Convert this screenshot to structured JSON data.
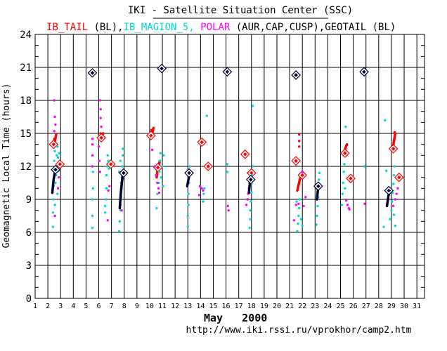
{
  "header": {
    "title": "IKI - Satellite Situation Center (SSC)",
    "legend": [
      {
        "text": "IB_TAIL",
        "color": "#ff0000"
      },
      {
        "text": " (BL),",
        "color": "#000000"
      },
      {
        "text": "IB_MAGION_5,",
        "color": "#00d8d8"
      },
      {
        "text": " POLAR",
        "color": "#ff00ff"
      },
      {
        "text": " (AUR,CAP,CUSP),",
        "color": "#000000"
      },
      {
        "text": "GEOTAIL",
        "color": "#000000"
      },
      {
        "text": " (BL)",
        "color": "#000000"
      }
    ]
  },
  "footer": {
    "month_label": "May   2000",
    "url": "http://www.iki.rssi.ru/vprokhor/camp2.htm"
  },
  "colors": {
    "ib_tail": "#ff0000",
    "magion5": "#00d8d8",
    "polar": "#ff00ff",
    "geotail": "#000033",
    "grid": "#000000",
    "background": "#ffffff"
  },
  "chart_data": {
    "type": "scatter",
    "xlabel": "",
    "ylabel": "Geomagnetic Local Time (hours)",
    "xlim": [
      1,
      31.6
    ],
    "ylim": [
      0,
      24
    ],
    "x_ticks": [
      1,
      2,
      3,
      4,
      5,
      6,
      7,
      8,
      9,
      10,
      11,
      12,
      13,
      14,
      15,
      16,
      17,
      18,
      19,
      20,
      21,
      22,
      23,
      24,
      25,
      26,
      27,
      28,
      29,
      30,
      31
    ],
    "y_ticks": [
      0,
      3,
      6,
      9,
      12,
      15,
      18,
      21,
      24
    ],
    "grid": true,
    "series": [
      {
        "name": "IB_TAIL",
        "color": "#ff0000",
        "segments": [
          {
            "x": [
              2.45,
              2.55,
              2.65
            ],
            "y": [
              13.8,
              14.2,
              14.9
            ]
          },
          {
            "x": [
              6.1,
              6.25,
              6.35
            ],
            "y": [
              14.6,
              14.8,
              15.0
            ]
          },
          {
            "x": [
              10.1,
              10.2,
              10.3
            ],
            "y": [
              14.8,
              15.0,
              15.5
            ]
          },
          {
            "x": [
              10.55,
              10.6,
              10.7,
              10.8
            ],
            "y": [
              11.0,
              11.5,
              12.0,
              12.5
            ]
          },
          {
            "x": [
              17.85,
              17.95,
              18.05
            ],
            "y": [
              10.5,
              11.0,
              11.6
            ]
          },
          {
            "x": [
              21.6,
              21.7,
              21.8,
              21.9
            ],
            "y": [
              9.8,
              10.3,
              10.8,
              11.2
            ]
          },
          {
            "x": [
              25.3,
              25.4,
              25.5
            ],
            "y": [
              13.4,
              13.7,
              14.0
            ]
          },
          {
            "x": [
              29.1,
              29.2,
              29.3
            ],
            "y": [
              13.6,
              14.3,
              15.0
            ]
          }
        ],
        "diamonds": [
          {
            "x": 2.45,
            "y": 14.0
          },
          {
            "x": 2.95,
            "y": 12.2
          },
          {
            "x": 6.2,
            "y": 14.6
          },
          {
            "x": 6.95,
            "y": 12.2
          },
          {
            "x": 10.1,
            "y": 14.8
          },
          {
            "x": 10.65,
            "y": 11.9
          },
          {
            "x": 14.1,
            "y": 14.2
          },
          {
            "x": 14.6,
            "y": 12.0
          },
          {
            "x": 17.5,
            "y": 13.1
          },
          {
            "x": 18.0,
            "y": 11.4
          },
          {
            "x": 21.5,
            "y": 12.5
          },
          {
            "x": 22.0,
            "y": 11.2
          },
          {
            "x": 25.35,
            "y": 13.2
          },
          {
            "x": 25.8,
            "y": 10.9
          },
          {
            "x": 29.15,
            "y": 13.6
          },
          {
            "x": 29.6,
            "y": 11.0
          }
        ],
        "points": [
          {
            "x": 2.5,
            "y": 14.5
          },
          {
            "x": 6.15,
            "y": 15.0
          },
          {
            "x": 10.15,
            "y": 15.3
          },
          {
            "x": 21.75,
            "y": 14.9
          },
          {
            "x": 21.75,
            "y": 14.3
          },
          {
            "x": 21.75,
            "y": 13.8
          },
          {
            "x": 29.25,
            "y": 15.1
          },
          {
            "x": 18.0,
            "y": 11.6
          }
        ]
      },
      {
        "name": "IB_MAGION_5",
        "color": "#00d8d8",
        "points": [
          {
            "x": 2.4,
            "y": 6.5
          },
          {
            "x": 2.4,
            "y": 7.8
          },
          {
            "x": 2.45,
            "y": 9.0
          },
          {
            "x": 2.45,
            "y": 10.2
          },
          {
            "x": 2.5,
            "y": 11.0
          },
          {
            "x": 2.5,
            "y": 12.5
          },
          {
            "x": 2.55,
            "y": 13.4
          },
          {
            "x": 2.6,
            "y": 12.0
          },
          {
            "x": 2.65,
            "y": 11.2
          },
          {
            "x": 2.7,
            "y": 13.0
          },
          {
            "x": 2.75,
            "y": 13.8
          },
          {
            "x": 2.8,
            "y": 12.8
          },
          {
            "x": 2.85,
            "y": 11.6
          },
          {
            "x": 2.9,
            "y": 13.2
          },
          {
            "x": 2.6,
            "y": 10.5
          },
          {
            "x": 2.75,
            "y": 9.5
          },
          {
            "x": 2.55,
            "y": 8.5
          },
          {
            "x": 5.5,
            "y": 6.4
          },
          {
            "x": 5.5,
            "y": 7.5
          },
          {
            "x": 5.5,
            "y": 9.0
          },
          {
            "x": 5.55,
            "y": 10.0
          },
          {
            "x": 5.55,
            "y": 11.5
          },
          {
            "x": 6.5,
            "y": 7.8
          },
          {
            "x": 6.55,
            "y": 9.0
          },
          {
            "x": 6.6,
            "y": 10.0
          },
          {
            "x": 6.6,
            "y": 11.2
          },
          {
            "x": 6.65,
            "y": 12.0
          },
          {
            "x": 6.7,
            "y": 13.0
          },
          {
            "x": 6.75,
            "y": 12.5
          },
          {
            "x": 6.8,
            "y": 11.8
          },
          {
            "x": 6.5,
            "y": 8.4
          },
          {
            "x": 7.6,
            "y": 6.1
          },
          {
            "x": 7.65,
            "y": 7.0
          },
          {
            "x": 7.7,
            "y": 8.0
          },
          {
            "x": 7.75,
            "y": 9.0
          },
          {
            "x": 7.8,
            "y": 10.0
          },
          {
            "x": 7.8,
            "y": 11.0
          },
          {
            "x": 7.85,
            "y": 12.0
          },
          {
            "x": 7.9,
            "y": 13.0
          },
          {
            "x": 7.9,
            "y": 13.6
          },
          {
            "x": 7.7,
            "y": 12.5
          },
          {
            "x": 7.6,
            "y": 11.5
          },
          {
            "x": 7.75,
            "y": 10.5
          },
          {
            "x": 10.55,
            "y": 8.2
          },
          {
            "x": 10.6,
            "y": 9.5
          },
          {
            "x": 10.7,
            "y": 10.5
          },
          {
            "x": 10.75,
            "y": 11.5
          },
          {
            "x": 10.8,
            "y": 12.5
          },
          {
            "x": 10.85,
            "y": 13.2
          },
          {
            "x": 10.9,
            "y": 11.0
          },
          {
            "x": 11.0,
            "y": 12.0
          },
          {
            "x": 11.1,
            "y": 13.0
          },
          {
            "x": 11.05,
            "y": 10.2
          },
          {
            "x": 13.0,
            "y": 6.5
          },
          {
            "x": 13.0,
            "y": 7.5
          },
          {
            "x": 13.05,
            "y": 8.5
          },
          {
            "x": 13.05,
            "y": 9.5
          },
          {
            "x": 13.1,
            "y": 10.5
          },
          {
            "x": 13.1,
            "y": 11.2
          },
          {
            "x": 13.15,
            "y": 12.0
          },
          {
            "x": 14.2,
            "y": 8.8
          },
          {
            "x": 14.25,
            "y": 9.5
          },
          {
            "x": 14.3,
            "y": 10.0
          },
          {
            "x": 14.5,
            "y": 16.6
          },
          {
            "x": 16.1,
            "y": 11.5
          },
          {
            "x": 16.1,
            "y": 12.2
          },
          {
            "x": 17.85,
            "y": 6.4
          },
          {
            "x": 17.9,
            "y": 7.2
          },
          {
            "x": 17.9,
            "y": 8.0
          },
          {
            "x": 17.95,
            "y": 8.8
          },
          {
            "x": 18.0,
            "y": 9.6
          },
          {
            "x": 18.0,
            "y": 10.4
          },
          {
            "x": 18.05,
            "y": 11.2
          },
          {
            "x": 18.1,
            "y": 12.0
          },
          {
            "x": 18.1,
            "y": 17.5
          },
          {
            "x": 21.6,
            "y": 6.1
          },
          {
            "x": 21.65,
            "y": 6.8
          },
          {
            "x": 21.7,
            "y": 7.5
          },
          {
            "x": 21.75,
            "y": 8.2
          },
          {
            "x": 21.8,
            "y": 9.0
          },
          {
            "x": 21.9,
            "y": 7.2
          },
          {
            "x": 22.0,
            "y": 6.6
          },
          {
            "x": 21.55,
            "y": 8.8
          },
          {
            "x": 23.1,
            "y": 6.7
          },
          {
            "x": 23.15,
            "y": 7.5
          },
          {
            "x": 23.2,
            "y": 8.4
          },
          {
            "x": 23.25,
            "y": 9.2
          },
          {
            "x": 23.3,
            "y": 10.0
          },
          {
            "x": 23.3,
            "y": 10.8
          },
          {
            "x": 23.35,
            "y": 11.4
          },
          {
            "x": 25.1,
            "y": 8.5
          },
          {
            "x": 25.15,
            "y": 9.5
          },
          {
            "x": 25.2,
            "y": 10.5
          },
          {
            "x": 25.25,
            "y": 11.5
          },
          {
            "x": 25.3,
            "y": 12.2
          },
          {
            "x": 25.4,
            "y": 15.6
          },
          {
            "x": 25.35,
            "y": 10.0
          },
          {
            "x": 26.9,
            "y": 12.0
          },
          {
            "x": 28.4,
            "y": 6.5
          },
          {
            "x": 28.5,
            "y": 16.2
          },
          {
            "x": 28.6,
            "y": 11.6
          },
          {
            "x": 28.9,
            "y": 7.2
          },
          {
            "x": 29.0,
            "y": 8.0
          },
          {
            "x": 29.05,
            "y": 8.8
          },
          {
            "x": 29.1,
            "y": 9.6
          },
          {
            "x": 29.15,
            "y": 10.4
          },
          {
            "x": 29.2,
            "y": 11.2
          },
          {
            "x": 29.25,
            "y": 12.0
          },
          {
            "x": 29.3,
            "y": 6.6
          },
          {
            "x": 29.2,
            "y": 7.6
          }
        ]
      },
      {
        "name": "POLAR",
        "color": "#ff00ff",
        "points": [
          {
            "x": 2.5,
            "y": 18.0
          },
          {
            "x": 2.55,
            "y": 16.5
          },
          {
            "x": 2.6,
            "y": 15.8
          },
          {
            "x": 2.5,
            "y": 15.2
          },
          {
            "x": 2.8,
            "y": 10.0
          },
          {
            "x": 2.85,
            "y": 11.0
          },
          {
            "x": 2.55,
            "y": 7.5
          },
          {
            "x": 5.5,
            "y": 12.0
          },
          {
            "x": 5.5,
            "y": 13.0
          },
          {
            "x": 5.5,
            "y": 14.0
          },
          {
            "x": 5.5,
            "y": 14.5
          },
          {
            "x": 6.1,
            "y": 18.0
          },
          {
            "x": 6.15,
            "y": 17.2
          },
          {
            "x": 6.15,
            "y": 16.4
          },
          {
            "x": 6.2,
            "y": 15.6
          },
          {
            "x": 6.05,
            "y": 12.5
          },
          {
            "x": 6.1,
            "y": 11.5
          },
          {
            "x": 6.0,
            "y": 13.8
          },
          {
            "x": 6.7,
            "y": 7.1
          },
          {
            "x": 6.75,
            "y": 9.8
          },
          {
            "x": 6.85,
            "y": 10.2
          },
          {
            "x": 7.7,
            "y": 8.5
          },
          {
            "x": 7.75,
            "y": 9.2
          },
          {
            "x": 7.8,
            "y": 8.0
          },
          {
            "x": 10.4,
            "y": 12.0
          },
          {
            "x": 10.5,
            "y": 11.2
          },
          {
            "x": 10.6,
            "y": 10.5
          },
          {
            "x": 10.7,
            "y": 10.0
          },
          {
            "x": 10.75,
            "y": 9.6
          },
          {
            "x": 10.2,
            "y": 13.5
          },
          {
            "x": 13.9,
            "y": 9.4
          },
          {
            "x": 13.95,
            "y": 10.2
          },
          {
            "x": 14.1,
            "y": 10.0
          },
          {
            "x": 14.2,
            "y": 9.8
          },
          {
            "x": 16.15,
            "y": 8.4
          },
          {
            "x": 16.2,
            "y": 8.0
          },
          {
            "x": 17.6,
            "y": 8.5
          },
          {
            "x": 17.7,
            "y": 9.0
          },
          {
            "x": 17.8,
            "y": 10.0
          },
          {
            "x": 17.75,
            "y": 9.5
          },
          {
            "x": 21.35,
            "y": 7.1
          },
          {
            "x": 21.5,
            "y": 8.5
          },
          {
            "x": 21.7,
            "y": 8.6
          },
          {
            "x": 22.1,
            "y": 8.4
          },
          {
            "x": 22.25,
            "y": 9.2
          },
          {
            "x": 22.0,
            "y": 11.5
          },
          {
            "x": 25.45,
            "y": 8.9
          },
          {
            "x": 25.55,
            "y": 8.5
          },
          {
            "x": 25.65,
            "y": 8.2
          },
          {
            "x": 25.7,
            "y": 8.1
          },
          {
            "x": 26.9,
            "y": 8.6
          },
          {
            "x": 29.15,
            "y": 8.4
          },
          {
            "x": 29.3,
            "y": 9.0
          },
          {
            "x": 29.4,
            "y": 9.5
          },
          {
            "x": 29.5,
            "y": 10.0
          }
        ]
      },
      {
        "name": "GEOTAIL",
        "color": "#000033",
        "segments": [
          {
            "x": [
              2.35,
              2.45,
              2.6
            ],
            "y": [
              9.6,
              10.8,
              11.8
            ]
          },
          {
            "x": [
              7.65,
              7.75,
              7.9
            ],
            "y": [
              8.2,
              9.8,
              11.4
            ]
          },
          {
            "x": [
              12.95,
              13.05,
              13.15
            ],
            "y": [
              10.2,
              10.8,
              11.4
            ]
          },
          {
            "x": [
              17.8,
              17.85,
              17.95
            ],
            "y": [
              9.6,
              10.2,
              10.8
            ]
          },
          {
            "x": [
              23.15,
              23.2,
              23.25
            ],
            "y": [
              9.0,
              9.6,
              10.2
            ]
          },
          {
            "x": [
              28.65,
              28.75,
              28.85
            ],
            "y": [
              8.4,
              9.2,
              9.8
            ]
          }
        ],
        "diamonds": [
          {
            "x": 2.6,
            "y": 11.7
          },
          {
            "x": 5.5,
            "y": 20.5
          },
          {
            "x": 7.95,
            "y": 11.4
          },
          {
            "x": 10.95,
            "y": 20.9
          },
          {
            "x": 13.1,
            "y": 11.4
          },
          {
            "x": 16.1,
            "y": 20.6
          },
          {
            "x": 17.95,
            "y": 10.8
          },
          {
            "x": 21.5,
            "y": 20.3
          },
          {
            "x": 23.25,
            "y": 10.2
          },
          {
            "x": 26.85,
            "y": 20.6
          },
          {
            "x": 28.8,
            "y": 9.8
          }
        ]
      }
    ]
  }
}
